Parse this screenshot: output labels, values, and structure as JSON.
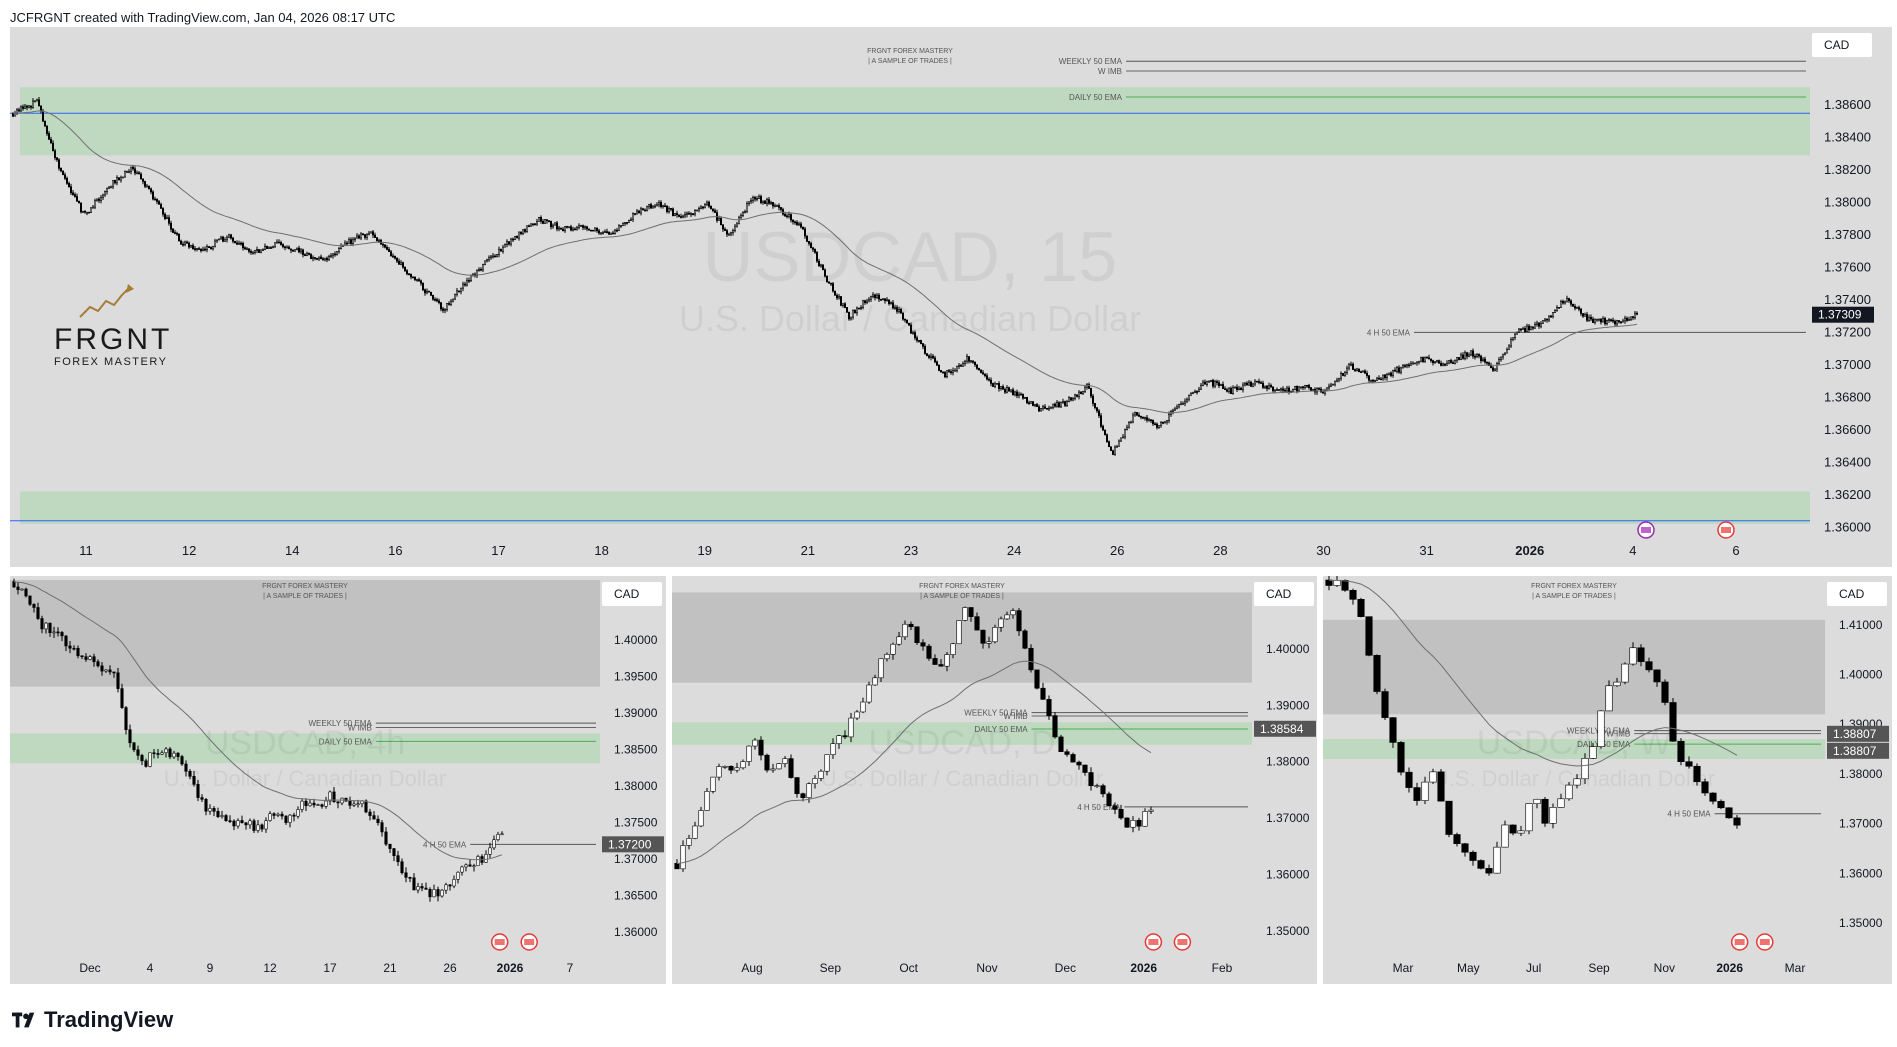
{
  "header": {
    "text": "JCFRGNT created with TradingView.com, Jan 04, 2026 08:17 UTC"
  },
  "footer": {
    "brand": "TradingView"
  },
  "brand_logo": {
    "name": "FRGNT",
    "tagline": "FOREX MASTERY"
  },
  "colors": {
    "zone_green": "#b9d8bb",
    "zone_gray": "#bcbcbc",
    "blue_line": "#2962ff",
    "green_line": "#4caf50",
    "candle": "#000000",
    "ema": "#6f6f6f"
  },
  "events": {
    "calendar_icons": [
      "us-flag-icon",
      "ca-flag-icon",
      "lightning-icon"
    ]
  },
  "chart_data": [
    {
      "type": "candlestick",
      "symbol": "USDCAD",
      "timeframe": "15",
      "watermark_symbol": "USDCAD, 15",
      "watermark_name": "U.S. Dollar / Canadian Dollar",
      "title": "FRGNT FOREX MASTERY",
      "subtitle": "| A SAMPLE OF TRADES |",
      "currency": "CAD",
      "last_price": "1.37309",
      "ylim": [
        1.3594,
        1.3897
      ],
      "yticks": [
        "1.38600",
        "1.38400",
        "1.38200",
        "1.38000",
        "1.37800",
        "1.37600",
        "1.37400",
        "1.37200",
        "1.37000",
        "1.36800",
        "1.36600",
        "1.36400",
        "1.36200",
        "1.36000"
      ],
      "xticks": [
        "11",
        "12",
        "14",
        "16",
        "17",
        "18",
        "19",
        "21",
        "23",
        "24",
        "26",
        "28",
        "30",
        "31",
        "2026",
        "4",
        "6"
      ],
      "line_labels": {
        "weekly": "WEEKLY 50 EMA",
        "wimb": "W IMB",
        "daily": "DAILY 50 EMA",
        "h4": "4 H 50 EMA"
      },
      "levels": {
        "weekly_ema": 1.3887,
        "w_imb": 1.3881,
        "daily_ema": 1.3865,
        "blue_top": 1.3855,
        "blue_bottom": 1.3604,
        "h4_ema": 1.372
      },
      "zones": [
        {
          "kind": "supply",
          "from": 1.3829,
          "to": 1.3871
        },
        {
          "kind": "demand",
          "from": 1.3602,
          "to": 1.3622
        }
      ],
      "price_path": [
        1.3855,
        1.3862,
        1.3818,
        1.3792,
        1.381,
        1.3822,
        1.38,
        1.3776,
        1.377,
        1.378,
        1.3768,
        1.3775,
        1.377,
        1.3764,
        1.3775,
        1.3782,
        1.3765,
        1.375,
        1.3734,
        1.3752,
        1.3766,
        1.3778,
        1.379,
        1.3784,
        1.3785,
        1.378,
        1.3792,
        1.38,
        1.379,
        1.38,
        1.378,
        1.3804,
        1.3797,
        1.3785,
        1.3755,
        1.373,
        1.3744,
        1.3735,
        1.3712,
        1.3694,
        1.3704,
        1.3688,
        1.3682,
        1.3673,
        1.3676,
        1.3687,
        1.3645,
        1.367,
        1.3662,
        1.3678,
        1.369,
        1.3684,
        1.3689,
        1.3684,
        1.3686,
        1.3684,
        1.37,
        1.369,
        1.3697,
        1.3704,
        1.37,
        1.3708,
        1.3698,
        1.372,
        1.3726,
        1.374,
        1.3728,
        1.3726,
        1.3731
      ]
    },
    {
      "type": "candlestick",
      "symbol": "USDCAD",
      "timeframe": "4h",
      "watermark_symbol": "USDCAD, 4h",
      "watermark_name": "U.S. Dollar / Canadian Dollar",
      "title": "FRGNT FOREX MASTERY",
      "subtitle": "| A SAMPLE OF TRADES |",
      "currency": "CAD",
      "last_price": "1.37200",
      "ylim": [
        1.3578,
        1.4082
      ],
      "yticks": [
        "1.40000",
        "1.39500",
        "1.39000",
        "1.38500",
        "1.38000",
        "1.37500",
        "1.37000",
        "1.36500",
        "1.36000"
      ],
      "xticks": [
        "Dec",
        "4",
        "9",
        "12",
        "17",
        "21",
        "26",
        "2026",
        "7"
      ],
      "line_labels": {
        "weekly": "WEEKLY 50 EMA",
        "wimb": "W IMB",
        "daily": "DAILY 50 EMA",
        "h4": "4 H 50 EMA"
      },
      "levels": {
        "weekly_ema": 1.3886,
        "w_imb": 1.388,
        "daily_ema": 1.3861,
        "h4_ema": 1.372
      },
      "zones": [
        {
          "kind": "supply",
          "from": 1.3936,
          "to": 1.4082
        },
        {
          "kind": "demand",
          "from": 1.3831,
          "to": 1.3872
        }
      ],
      "price_path": [
        1.408,
        1.406,
        1.402,
        1.401,
        1.399,
        1.3975,
        1.396,
        1.395,
        1.386,
        1.383,
        1.385,
        1.3845,
        1.382,
        1.378,
        1.376,
        1.3745,
        1.375,
        1.374,
        1.376,
        1.375,
        1.378,
        1.377,
        1.379,
        1.3775,
        1.378,
        1.376,
        1.372,
        1.368,
        1.366,
        1.365,
        1.3655,
        1.368,
        1.369,
        1.371,
        1.3735
      ]
    },
    {
      "type": "candlestick",
      "symbol": "USDCAD",
      "timeframe": "D",
      "watermark_symbol": "USDCAD, D",
      "watermark_name": "U.S. Dollar / Canadian Dollar",
      "title": "FRGNT FOREX MASTERY",
      "subtitle": "| A SAMPLE OF TRADES |",
      "currency": "CAD",
      "last_price": "1.38584",
      "ylim": [
        1.347,
        1.4122
      ],
      "yticks": [
        "1.40000",
        "1.39000",
        "1.38000",
        "1.37000",
        "1.36000",
        "1.35000"
      ],
      "xticks": [
        "Aug",
        "Sep",
        "Oct",
        "Nov",
        "Dec",
        "2026",
        "Feb"
      ],
      "line_labels": {
        "weekly": "WEEKLY 50 EMA",
        "wimb": "W IMB",
        "daily": "DAILY 50 EMA",
        "h4": "4 H 50 EMA",
        "wimb2": "W IMB"
      },
      "levels": {
        "weekly_ema": 1.3887,
        "w_imb": 1.3881,
        "daily_ema": 1.3858,
        "h4_ema": 1.372
      },
      "zones": [
        {
          "kind": "supply",
          "from": 1.394,
          "to": 1.41
        },
        {
          "kind": "demand",
          "from": 1.383,
          "to": 1.387
        }
      ],
      "price_path": [
        1.362,
        1.368,
        1.375,
        1.38,
        1.378,
        1.385,
        1.377,
        1.381,
        1.374,
        1.376,
        1.382,
        1.385,
        1.39,
        1.396,
        1.401,
        1.405,
        1.4,
        1.396,
        1.401,
        1.408,
        1.4,
        1.405,
        1.406,
        1.398,
        1.39,
        1.383,
        1.38,
        1.376,
        1.374,
        1.37,
        1.3685,
        1.372
      ]
    },
    {
      "type": "candlestick",
      "symbol": "USDCAD",
      "timeframe": "W",
      "watermark_symbol": "USDCAD, W",
      "watermark_name": "U.S. Dollar / Canadian Dollar",
      "title": "FRGNT FOREX MASTERY",
      "subtitle": "| A SAMPLE OF TRADES |",
      "currency": "CAD",
      "last_price": "1.38807",
      "last_price_2": "1.38807",
      "ylim": [
        1.345,
        1.419
      ],
      "yticks": [
        "1.41000",
        "1.40000",
        "1.39000",
        "1.38000",
        "1.37000",
        "1.36000",
        "1.35000"
      ],
      "xticks": [
        "Mar",
        "May",
        "Jul",
        "Sep",
        "Nov",
        "2026",
        "Mar"
      ],
      "line_labels": {
        "weekly": "WEEKLY 50 EMA",
        "wimb": "W IMB",
        "daily": "DAILY 50 EMA",
        "h4": "4 H 50 EMA",
        "wimb2": "W IMB"
      },
      "levels": {
        "weekly_ema": 1.3887,
        "w_imb": 1.3881,
        "daily_ema": 1.386,
        "h4_ema": 1.372
      },
      "zones": [
        {
          "kind": "supply",
          "from": 1.392,
          "to": 1.411
        },
        {
          "kind": "demand",
          "from": 1.383,
          "to": 1.387
        }
      ],
      "price_path": [
        1.419,
        1.418,
        1.415,
        1.4,
        1.39,
        1.38,
        1.375,
        1.382,
        1.37,
        1.365,
        1.362,
        1.36,
        1.37,
        1.368,
        1.376,
        1.37,
        1.376,
        1.38,
        1.385,
        1.396,
        1.4,
        1.405,
        1.4,
        1.395,
        1.382,
        1.38,
        1.376,
        1.372,
        1.37
      ]
    }
  ]
}
